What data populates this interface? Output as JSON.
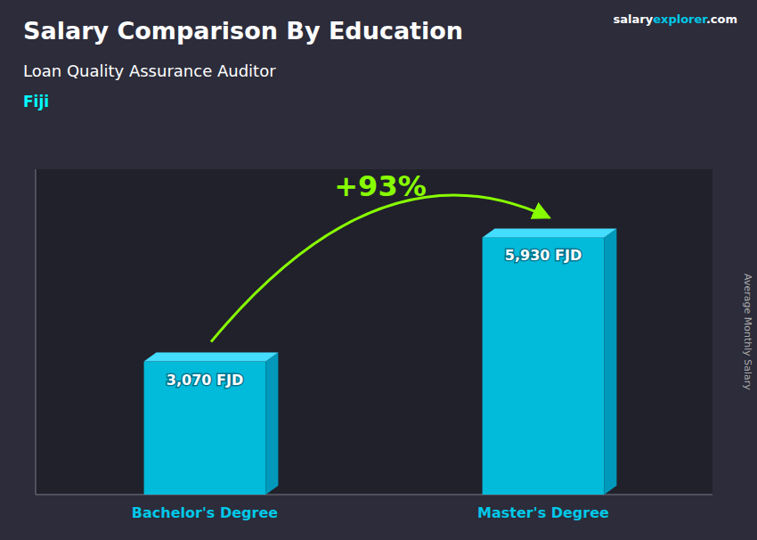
{
  "chart_data": {
    "type": "bar",
    "title": "Salary Comparison By Education",
    "subtitle": "Loan Quality Assurance Auditor",
    "location": "Fiji",
    "site": [
      {
        "text": "salary",
        "color": "#FFFFFF"
      },
      {
        "text": "explorer",
        "color": "#00C8E8"
      },
      {
        "text": ".com",
        "color": "#FFFFFF"
      }
    ],
    "y_label": "Average Monthly Salary",
    "categories": [
      "Bachelor's Degree",
      "Master's Degree"
    ],
    "values": [
      3070,
      5930
    ],
    "value_labels": [
      "3,070 FJD",
      "5,930 FJD"
    ],
    "data_labels": true,
    "color": "#00C8E8",
    "ylim": [
      0,
      7500
    ],
    "yticks": [],
    "tick_labels": "x",
    "grid": false,
    "annotations": [
      {
        "text": "+93%",
        "color": "#88FF00"
      }
    ]
  }
}
